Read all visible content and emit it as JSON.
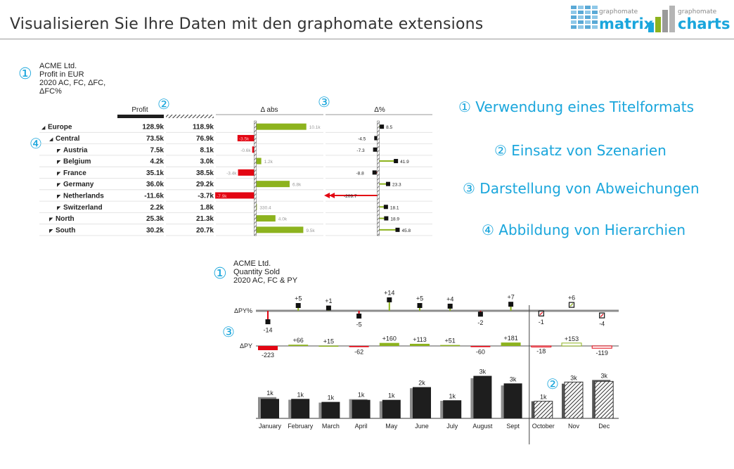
{
  "header": {
    "title": "Visualisieren Sie Ihre Daten mit den graphomate extensions",
    "logos": [
      {
        "small": "graphomate",
        "big": "matrix"
      },
      {
        "small": "graphomate",
        "big": "charts"
      }
    ]
  },
  "features": [
    {
      "num": "①",
      "text": "Verwendung eines Titelformats"
    },
    {
      "num": "②",
      "text": "Einsatz von Szenarien"
    },
    {
      "num": "③",
      "text": "Darstellung von Abweichungen"
    },
    {
      "num": "④",
      "text": "Abbildung von Hierarchien"
    }
  ],
  "markers": {
    "one": "①",
    "two": "②",
    "three": "③",
    "four": "④"
  },
  "table_chart": {
    "title_lines": [
      "ACME Ltd.",
      "Profit in EUR",
      "2020 AC, FC, ΔFC,",
      "ΔFC%"
    ],
    "col_headers": {
      "ac": "Profit",
      "dabs": "Δ abs",
      "dpct": "Δ%"
    },
    "rows": [
      {
        "label": "Europe",
        "marker": "◢",
        "level": 0,
        "ac": "128.9k",
        "fc": "118.9k",
        "dabs": 10.1,
        "dabs_label": "10.1k",
        "dpct": 8.5,
        "dpct_label": "8.5"
      },
      {
        "label": "Central",
        "marker": "◢",
        "level": 1,
        "ac": "73.5k",
        "fc": "76.9k",
        "dabs": -3.5,
        "dabs_label": "-3.5k",
        "dpct": -4.5,
        "dpct_label": "-4.5"
      },
      {
        "label": "Austria",
        "marker": "◤",
        "level": 2,
        "ac": "7.5k",
        "fc": "8.1k",
        "dabs": -0.6,
        "dabs_label": "-0.6k",
        "dpct": -7.3,
        "dpct_label": "-7.3"
      },
      {
        "label": "Belgium",
        "marker": "◤",
        "level": 2,
        "ac": "4.2k",
        "fc": "3.0k",
        "dabs": 1.2,
        "dabs_label": "1.2k",
        "dpct": 41.9,
        "dpct_label": "41.9"
      },
      {
        "label": "France",
        "marker": "◤",
        "level": 2,
        "ac": "35.1k",
        "fc": "38.5k",
        "dabs": -3.4,
        "dabs_label": "-3.4k",
        "dpct": -8.8,
        "dpct_label": "-8.8"
      },
      {
        "label": "Germany",
        "marker": "◤",
        "level": 2,
        "ac": "36.0k",
        "fc": "29.2k",
        "dabs": 6.8,
        "dabs_label": "6.8k",
        "dpct": 23.3,
        "dpct_label": "23.3"
      },
      {
        "label": "Netherlands",
        "marker": "◤",
        "level": 2,
        "ac": "-11.6k",
        "fc": "-3.7k",
        "dabs": -7.9,
        "dabs_label": "-7.9k",
        "dpct": -209.7,
        "dpct_label": "-209.7"
      },
      {
        "label": "Switzerland",
        "marker": "◤",
        "level": 2,
        "ac": "2.2k",
        "fc": "1.8k",
        "dabs": 0.33,
        "dabs_label": "330.4",
        "dpct": 18.1,
        "dpct_label": "18.1"
      },
      {
        "label": "North",
        "marker": "◤",
        "level": 1,
        "ac": "25.3k",
        "fc": "21.3k",
        "dabs": 4.0,
        "dabs_label": "4.0k",
        "dpct": 18.9,
        "dpct_label": "18.9"
      },
      {
        "label": "South",
        "marker": "◤",
        "level": 1,
        "ac": "30.2k",
        "fc": "20.7k",
        "dabs": 9.5,
        "dabs_label": "9.5k",
        "dpct": 45.8,
        "dpct_label": "45.8"
      }
    ]
  },
  "chart_data": {
    "type": "bar",
    "title": [
      "ACME Ltd.",
      "Quantity Sold",
      "2020 AC, FC & PY"
    ],
    "categories": [
      "January",
      "February",
      "March",
      "April",
      "May",
      "June",
      "July",
      "August",
      "Sept",
      "October",
      "Nov",
      "Dec"
    ],
    "scenario": [
      "AC",
      "AC",
      "AC",
      "AC",
      "AC",
      "AC",
      "AC",
      "AC",
      "AC",
      "FC",
      "FC",
      "FC"
    ],
    "series": [
      {
        "name": "",
        "values": [
          1.42,
          1.42,
          1.2,
          1.35,
          1.35,
          2.28,
          1.32,
          3.1,
          2.55,
          1.25,
          2.65,
          2.7
        ]
      },
      {
        "name": "",
        "values": [
          1.55,
          1.36,
          1.15,
          1.4,
          1.25,
          2.2,
          1.28,
          2.93,
          2.4,
          1.25,
          2.53,
          2.8
        ]
      }
    ],
    "value_labels": [
      "1k",
      "1k",
      "1k",
      "1k",
      "1k",
      "2k",
      "1k",
      "3k",
      "3k",
      "1k",
      "3k",
      "3k"
    ],
    "delta_py_pct": [
      -14,
      5,
      1,
      -5,
      14,
      5,
      4,
      -2,
      7,
      -1,
      6,
      -4
    ],
    "delta_py_pct_labels": [
      "-14",
      "+5",
      "+1",
      "-5",
      "+14",
      "+5",
      "+4",
      "-2",
      "+7",
      "-1",
      "+6",
      "-4"
    ],
    "delta_py": [
      -223,
      66,
      15,
      -62,
      160,
      113,
      51,
      -60,
      181,
      -18,
      153,
      -119
    ],
    "delta_py_labels": [
      "-223",
      "+66",
      "+15",
      "-62",
      "+160",
      "+113",
      "+51",
      "-60",
      "+181",
      "-18",
      "+153",
      "-119"
    ],
    "row_labels": {
      "pct": "ΔPY%",
      "abs": "ΔPY"
    },
    "colors": {
      "ac": "#1e1e1e",
      "py": "#8c8c8c",
      "pos": "#8db31e",
      "neg": "#e30613",
      "axis": "#8c8c8c"
    }
  }
}
